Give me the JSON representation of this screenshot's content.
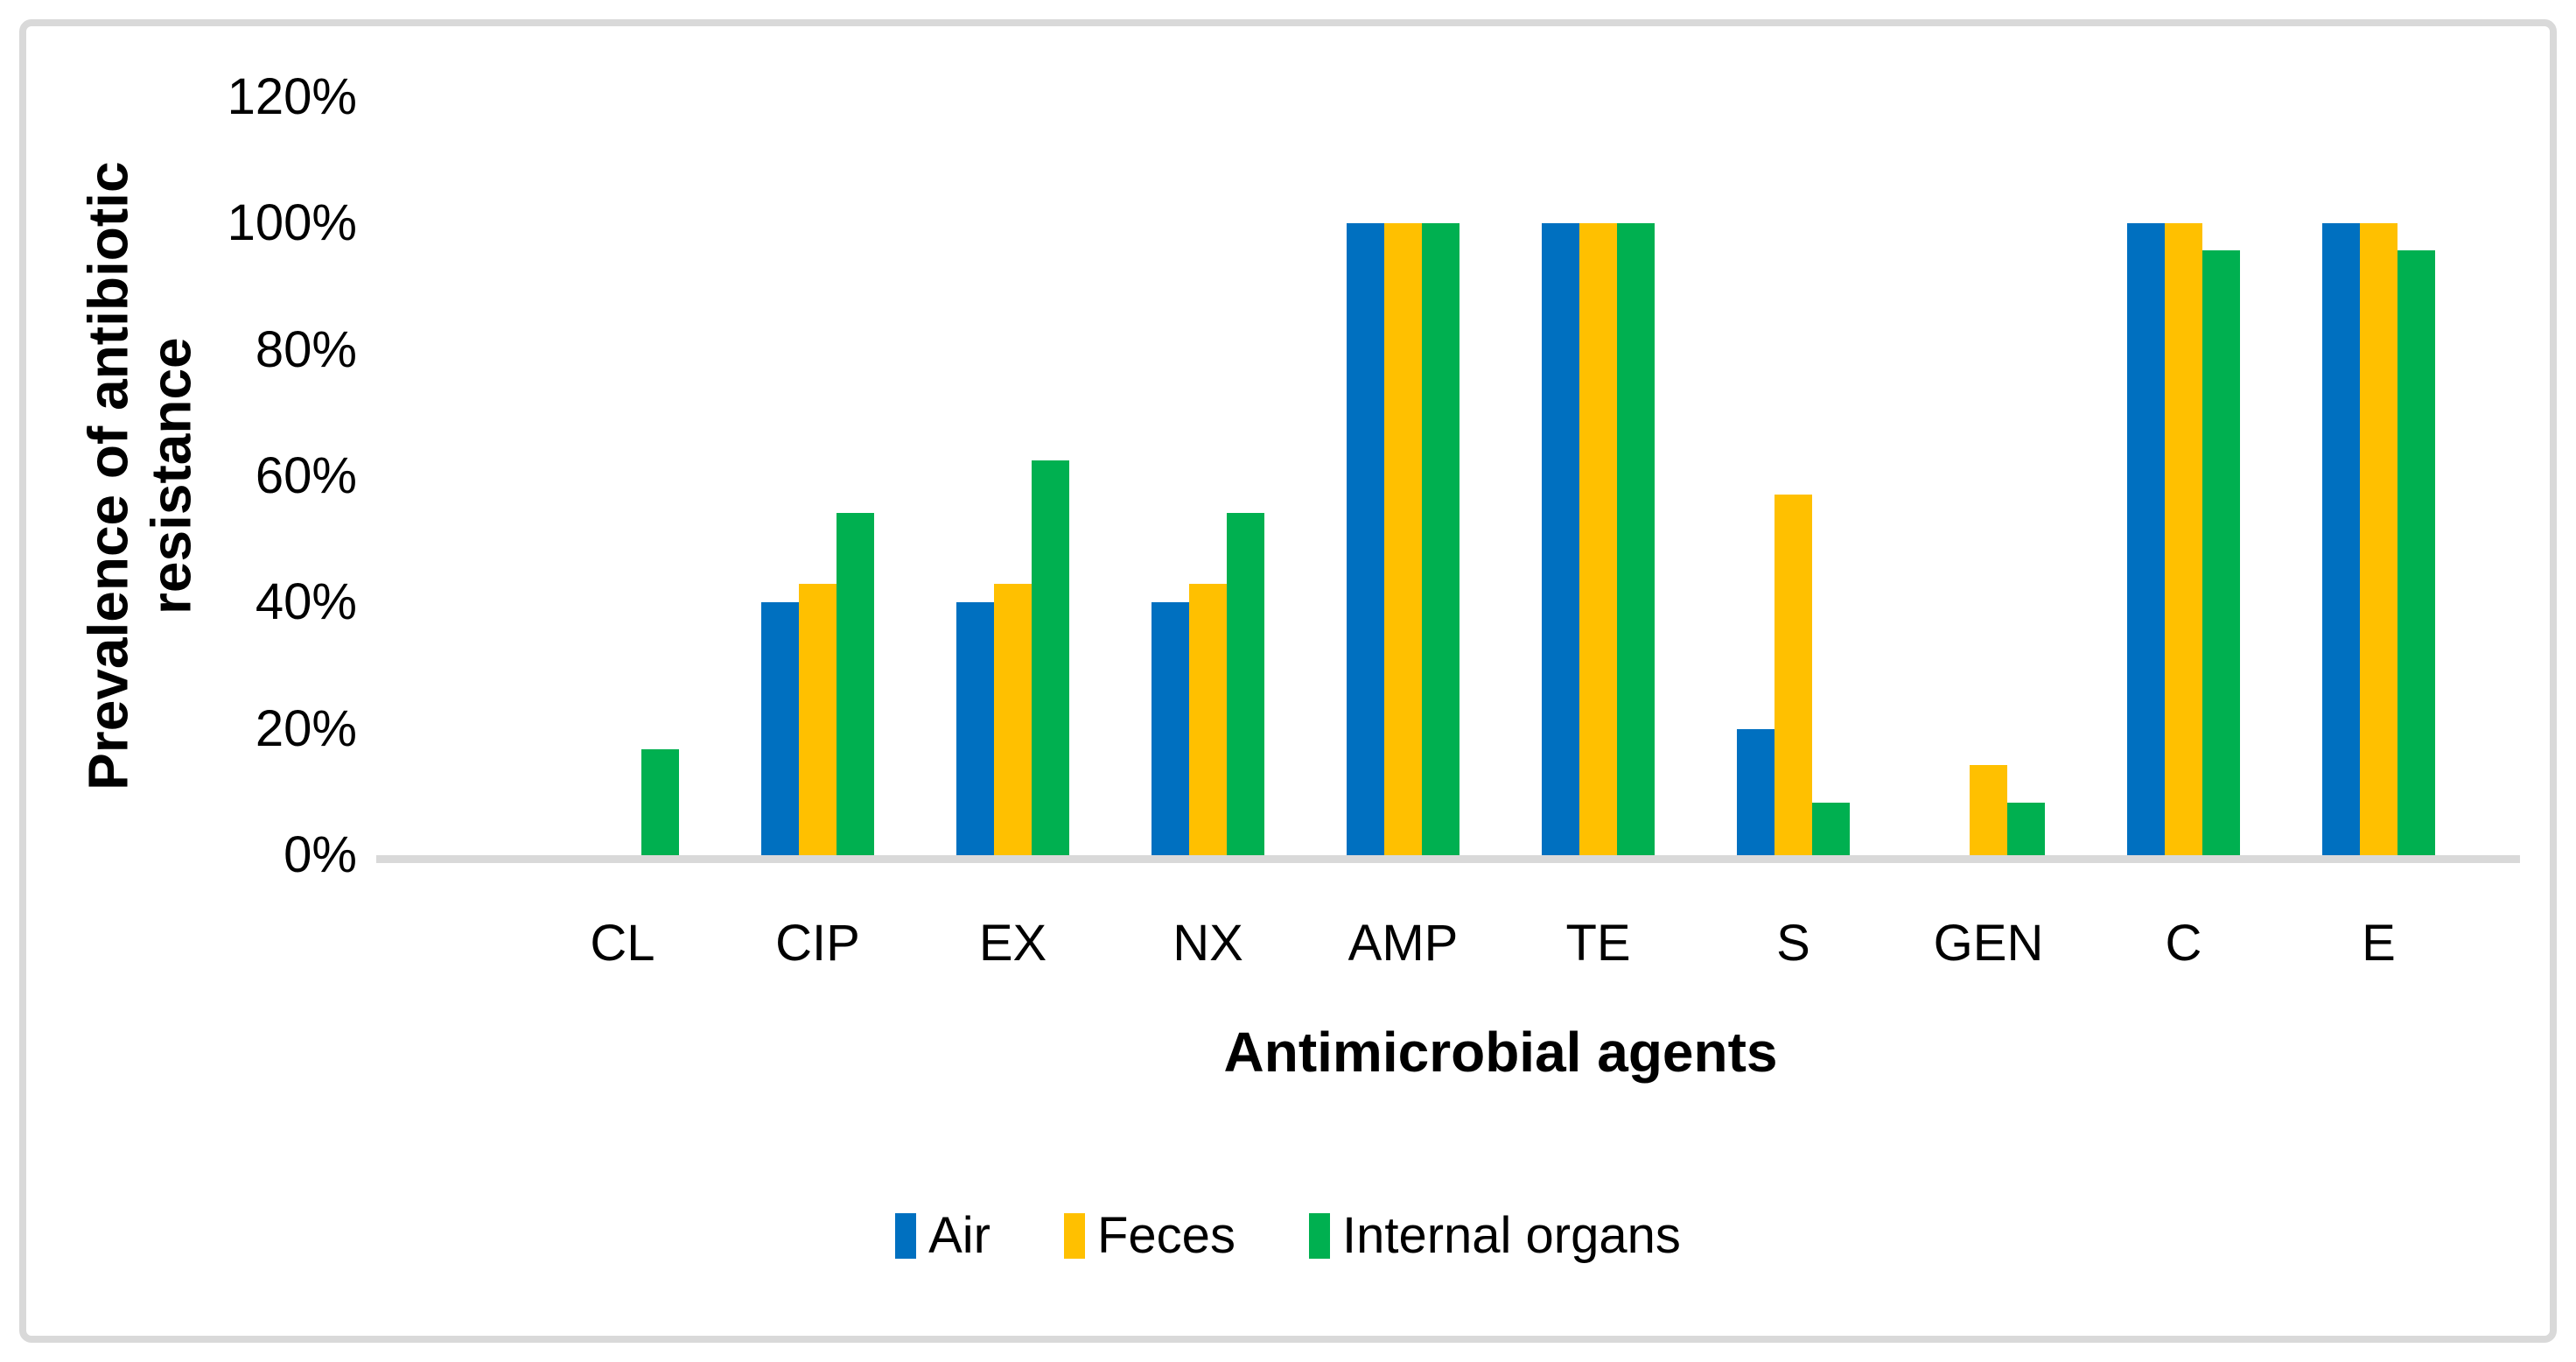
{
  "chart_data": {
    "type": "bar",
    "title": "",
    "categories": [
      "CL",
      "CIP",
      "EX",
      "NX",
      "AMP",
      "TE",
      "S",
      "GEN",
      "C",
      "E"
    ],
    "series": [
      {
        "name": "Air",
        "color": "#0070C0",
        "values": [
          0,
          40,
          40,
          40,
          100,
          100,
          20,
          0,
          100,
          100
        ]
      },
      {
        "name": "Feces",
        "color": "#FFC000",
        "values": [
          0,
          42.9,
          42.9,
          42.9,
          100,
          100,
          57.1,
          14.3,
          100,
          100
        ]
      },
      {
        "name": "Internal organs",
        "color": "#00B050",
        "values": [
          16.7,
          54.2,
          62.5,
          54.2,
          100,
          100,
          8.3,
          8.3,
          95.8,
          95.8
        ]
      }
    ],
    "xlabel": "Antimicrobial agents",
    "ylabel": "Prevalence of antibiotic resistance",
    "y_ticks": [
      "0%",
      "20%",
      "40%",
      "60%",
      "80%",
      "100%",
      "120%"
    ],
    "ylim": [
      0,
      120
    ],
    "grid": false,
    "legend_position": "bottom",
    "axis_line_color": "#D9D9D9"
  }
}
